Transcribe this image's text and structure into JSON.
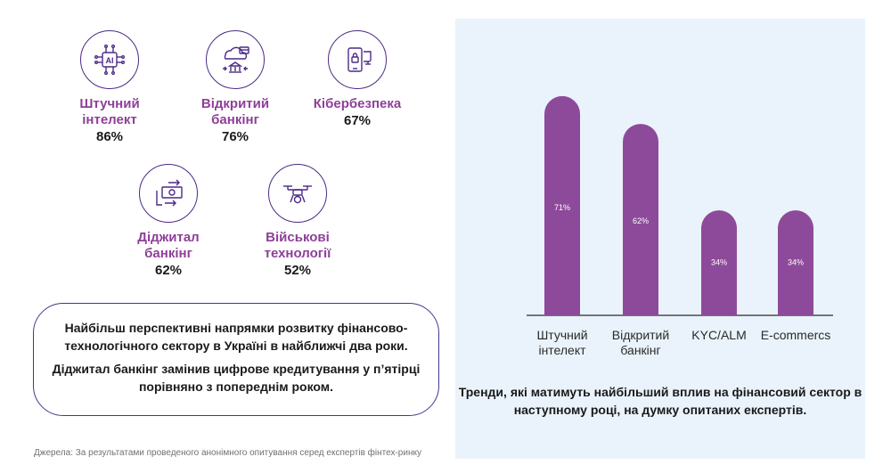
{
  "topics": [
    {
      "label_line1": "Штучний",
      "label_line2": "інтелект",
      "percent": "86%",
      "icon": "ai-chip-icon"
    },
    {
      "label_line1": "Відкритий",
      "label_line2": "банкінг",
      "percent": "76%",
      "icon": "cloud-bank-icon"
    },
    {
      "label_line1": "Кібербезпека",
      "label_line2": "",
      "percent": "67%",
      "icon": "phone-lock-icon"
    },
    {
      "label_line1": "Діджитал",
      "label_line2": "банкінг",
      "percent": "62%",
      "icon": "digital-payment-icon"
    },
    {
      "label_line1": "Військові",
      "label_line2": "технології",
      "percent": "52%",
      "icon": "drone-icon"
    }
  ],
  "callout": {
    "line1": "Найбільш перспективні напрямки розвитку фінансово-технологічного сектору в Україні в найближчі два роки.",
    "line2": "Діджитал банкінг замінив цифрове кредитування у п’ятірці порівняно з попереднім роком."
  },
  "source": "Джерела: За результатами проведеного анонімного опитування серед експертів фінтех-ринку",
  "chart_caption": "Тренди, які матимуть найбільший вплив на фінансовий сектор в наступному році, на думку опитаних експертів.",
  "colors": {
    "bar": "#8e4a9a",
    "accent": "#8e3f98",
    "panel_bg": "#eaf3fb",
    "outline": "#4b2a86"
  },
  "chart_data": {
    "type": "bar",
    "categories": [
      [
        "Штучний",
        "інтелект"
      ],
      [
        "Відкритий",
        "банкінг"
      ],
      [
        "KYC/ALM"
      ],
      [
        "E-commercs"
      ]
    ],
    "values": [
      71,
      62,
      34,
      34
    ],
    "value_labels": [
      "71%",
      "62%",
      "34%",
      "34%"
    ],
    "ylim": [
      0,
      75
    ],
    "grid": false,
    "legend": "none"
  }
}
